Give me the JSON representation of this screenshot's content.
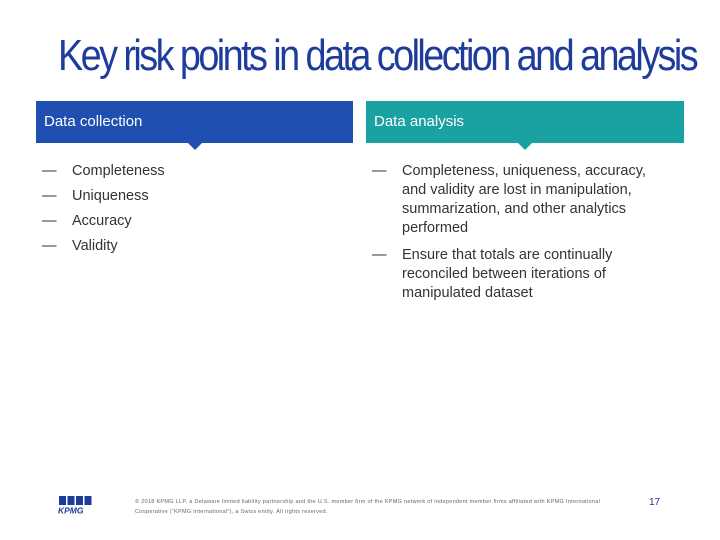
{
  "title": "Key risk points in data collection and analysis",
  "columns": [
    {
      "header": "Data collection",
      "color": "#1f4fb0",
      "items": [
        "Completeness",
        "Uniqueness",
        "Accuracy",
        "Validity"
      ]
    },
    {
      "header": "Data analysis",
      "color": "#1aa1a1",
      "items": [
        "Completeness, uniqueness, accuracy, and validity are lost in manipulation, summarization, and other analytics performed",
        "Ensure that totals are continually reconciled between iterations of manipulated dataset"
      ]
    }
  ],
  "bullet_glyph": "—",
  "logo_text": "KPMG",
  "footer": "© 2018 KPMG LLP, a Delaware limited liability partnership and the U.S. member firm of the KPMG network of independent member firms affiliated with KPMG International Cooperative (“KPMG International”), a Swiss entity. All rights reserved.",
  "page_number": "17"
}
